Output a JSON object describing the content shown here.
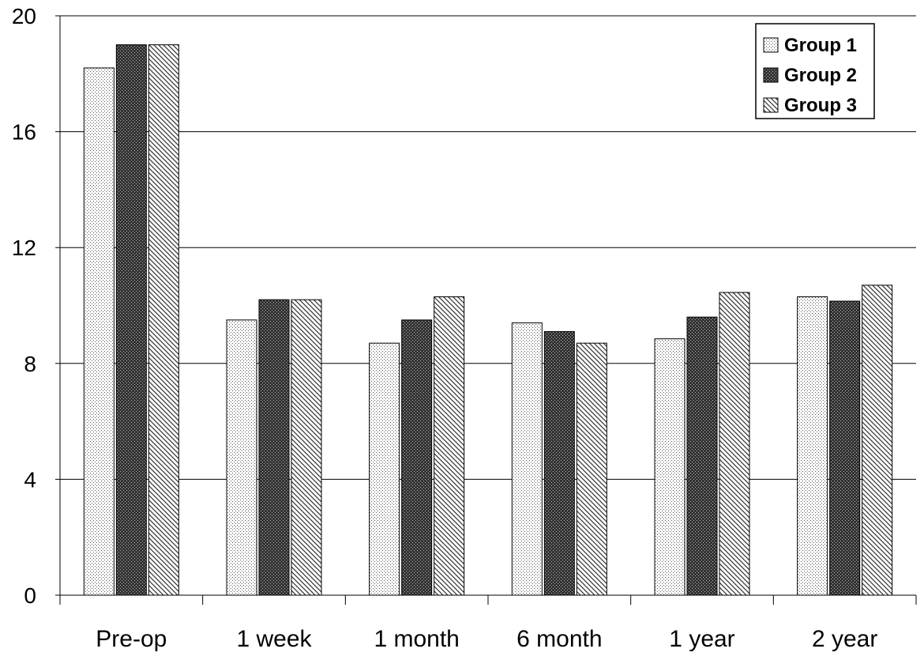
{
  "chart_data": {
    "type": "bar",
    "title": "",
    "xlabel": "",
    "ylabel": "",
    "categories": [
      "Pre-op",
      "1 week",
      "1 month",
      "6 month",
      "1 year",
      "2 year"
    ],
    "series": [
      {
        "name": "Group 1",
        "values": [
          18.2,
          9.5,
          8.7,
          9.4,
          8.85,
          10.3
        ]
      },
      {
        "name": "Group 2",
        "values": [
          19.0,
          10.2,
          9.5,
          9.1,
          9.6,
          10.15
        ]
      },
      {
        "name": "Group 3",
        "values": [
          19.0,
          10.2,
          10.3,
          8.7,
          10.45,
          10.7
        ]
      }
    ],
    "ylim": [
      0,
      20
    ],
    "yticks": [
      0,
      4,
      8,
      12,
      16,
      20
    ],
    "grid": true,
    "legend_position": "top-right",
    "patterns": [
      "light-dots",
      "dark-crosshatch",
      "diagonal-hatch"
    ]
  }
}
